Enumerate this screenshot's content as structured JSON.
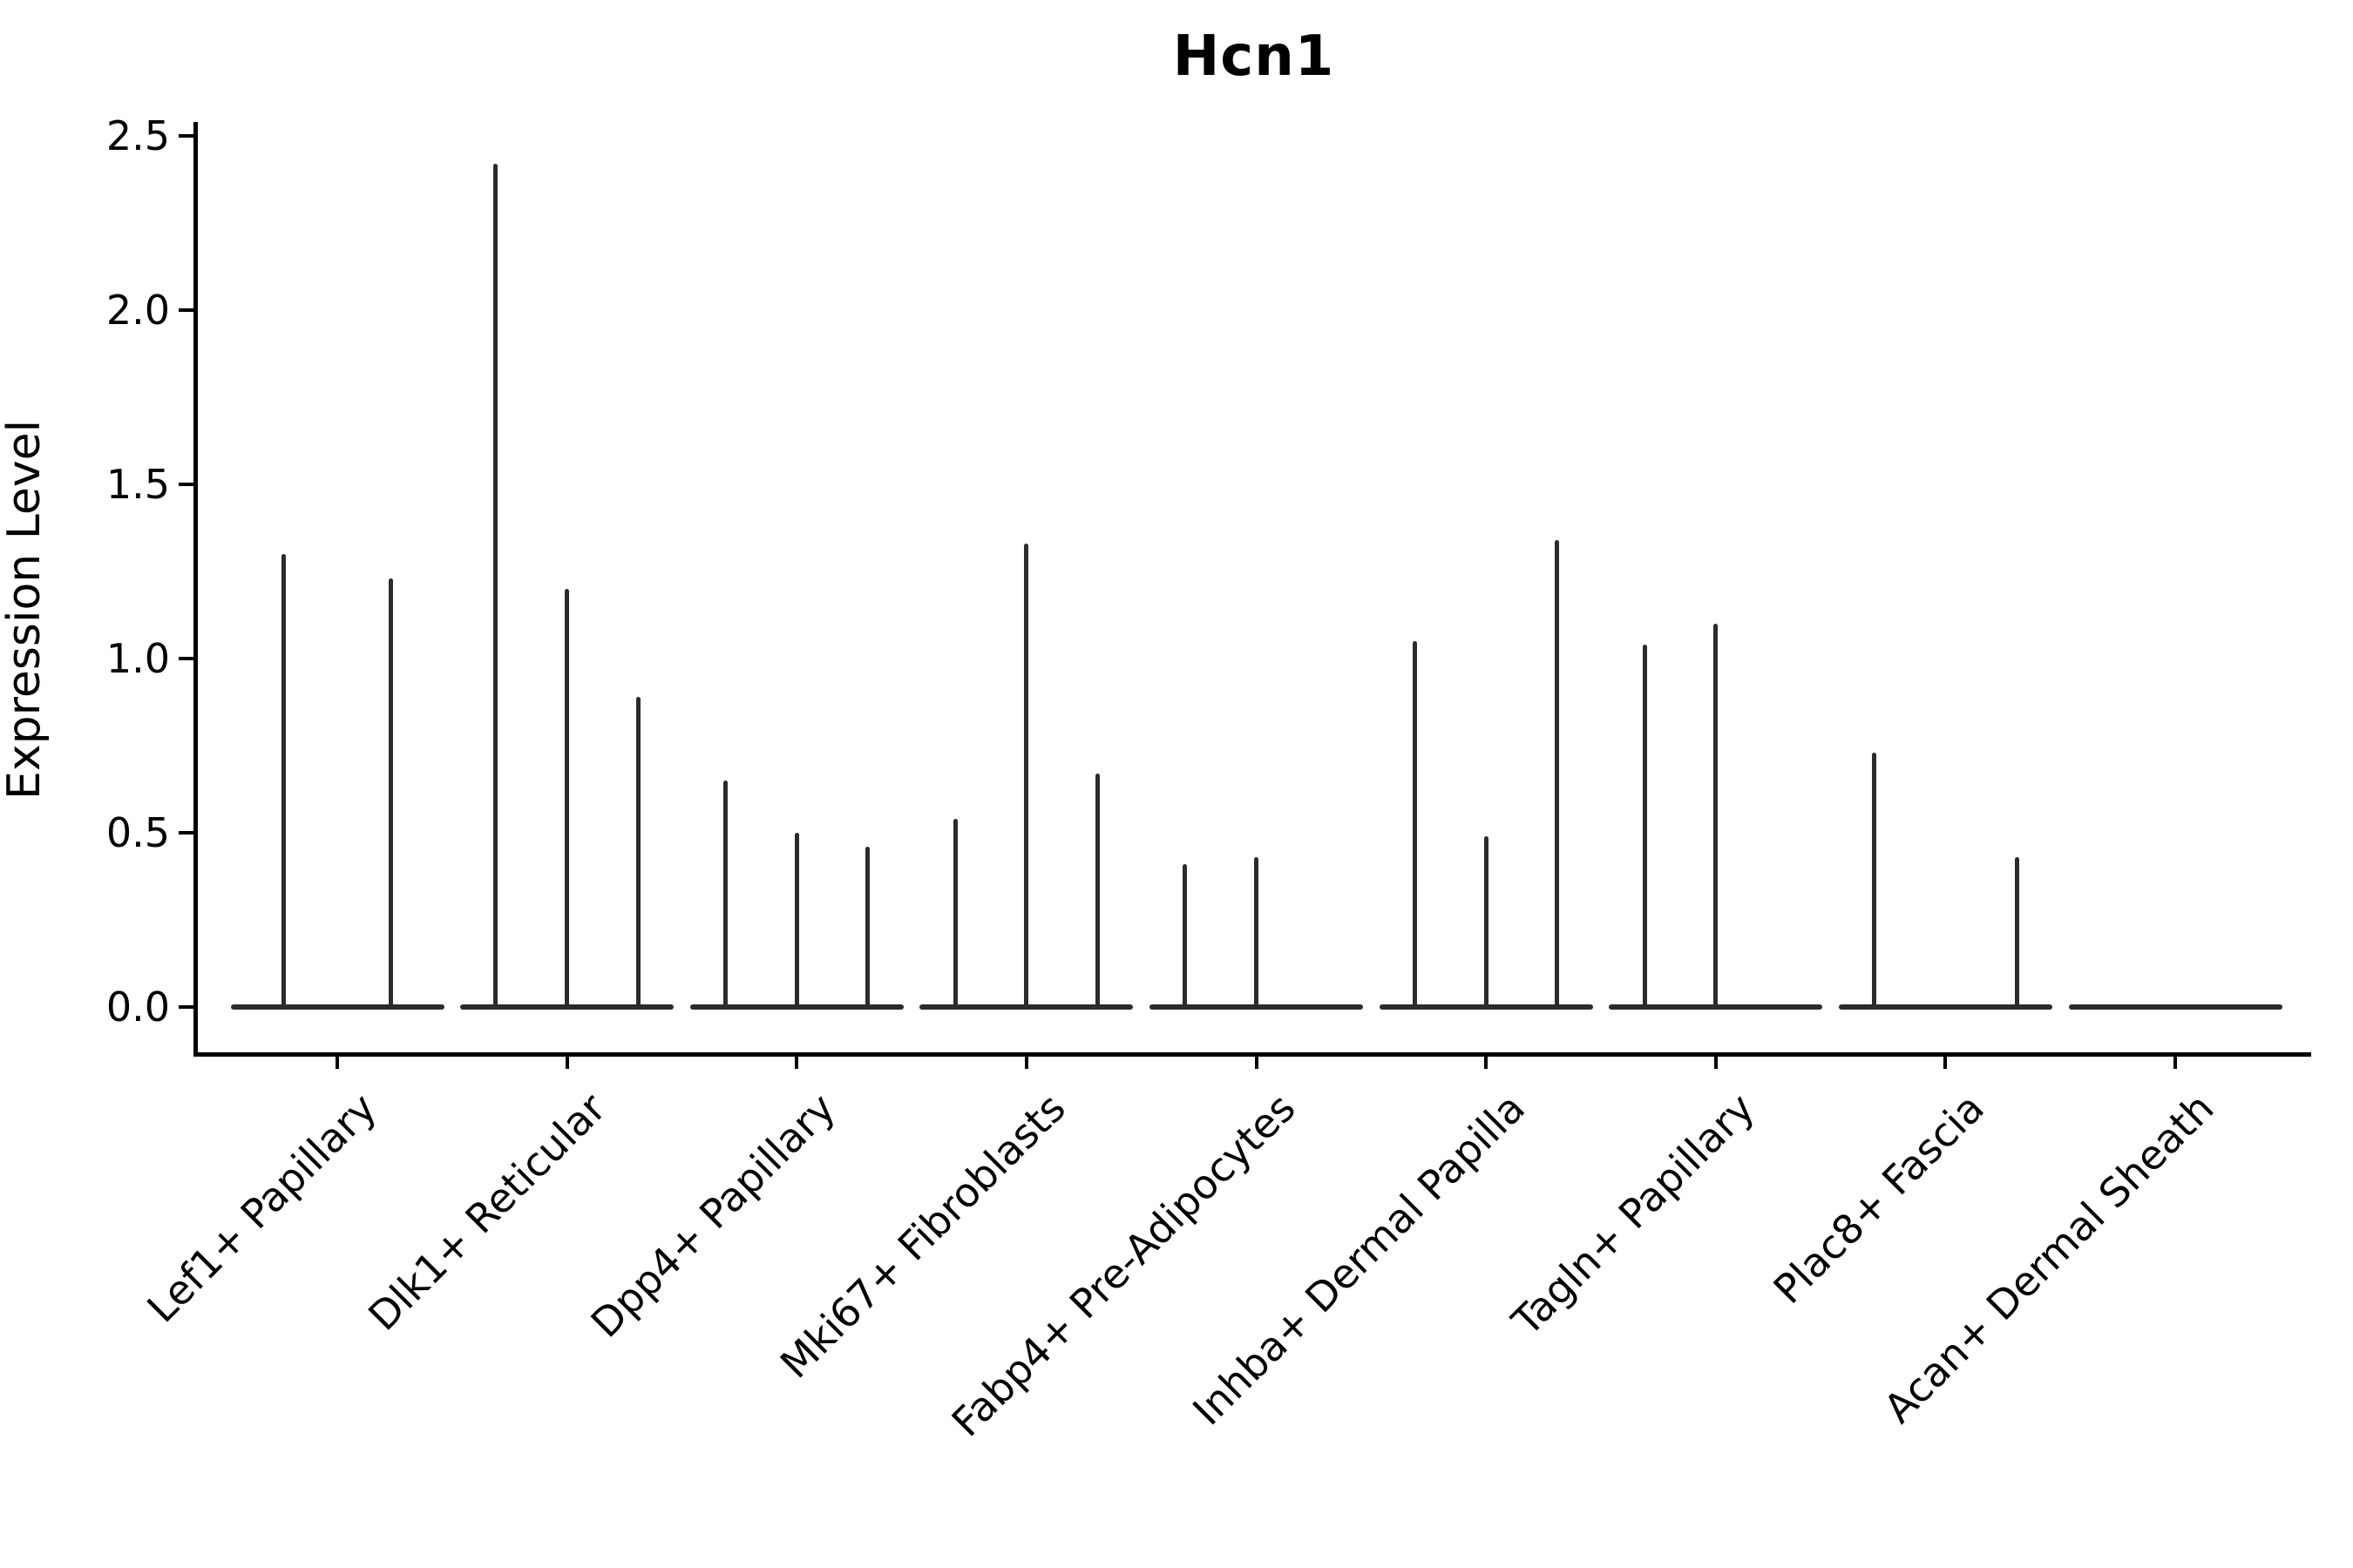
{
  "title": "Hcn1",
  "y_axis": {
    "label": "Expression Level",
    "tick_labels": [
      "0.0",
      "0.5",
      "1.0",
      "1.5",
      "2.0",
      "2.5"
    ]
  },
  "chart_data": {
    "type": "violin",
    "title": "Hcn1",
    "xlabel": "",
    "ylabel": "Expression Level",
    "ylim": [
      -0.14,
      2.54
    ],
    "y_ticks": [
      0.0,
      0.5,
      1.0,
      1.5,
      2.0,
      2.5
    ],
    "grid": false,
    "legend": "none",
    "style": "stacked-violin spikes: near-zero-width violins drawn as dark vertical lines rising from a flat zero baseline, no fill color",
    "line_color": "#2b2b2b",
    "categories": [
      "Lef1+ Papillary",
      "Dlk1+ Reticular",
      "Dpp4+ Papillary",
      "Mki67+ Fibroblasts",
      "Fabp4+ Pre-Adipocytes",
      "Inhba+ Dermal Papilla",
      "Tagln+ Papillary",
      "Plac8+ Fascia",
      "Acan+ Dermal Sheath"
    ],
    "groups": [
      {
        "label": "Lef1+ Papillary",
        "violin_peaks": [
          1.3,
          1.23
        ]
      },
      {
        "label": "Dlk1+ Reticular",
        "violin_peaks": [
          2.42,
          1.2,
          0.89
        ]
      },
      {
        "label": "Dpp4+ Papillary",
        "violin_peaks": [
          0.65,
          0.5,
          0.46
        ]
      },
      {
        "label": "Mki67+ Fibroblasts",
        "violin_peaks": [
          0.54,
          1.33,
          0.67
        ]
      },
      {
        "label": "Fabp4+ Pre-Adipocytes",
        "violin_peaks": [
          0.41,
          0.43,
          0.0
        ]
      },
      {
        "label": "Inhba+ Dermal Papilla",
        "violin_peaks": [
          1.05,
          0.49,
          1.34
        ]
      },
      {
        "label": "Tagln+ Papillary",
        "violin_peaks": [
          1.04,
          1.1,
          0.0
        ]
      },
      {
        "label": "Plac8+ Fascia",
        "violin_peaks": [
          0.73,
          0.0,
          0.43
        ]
      },
      {
        "label": "Acan+ Dermal Sheath",
        "violin_peaks": [
          0.0,
          0.0,
          0.0
        ]
      }
    ]
  }
}
